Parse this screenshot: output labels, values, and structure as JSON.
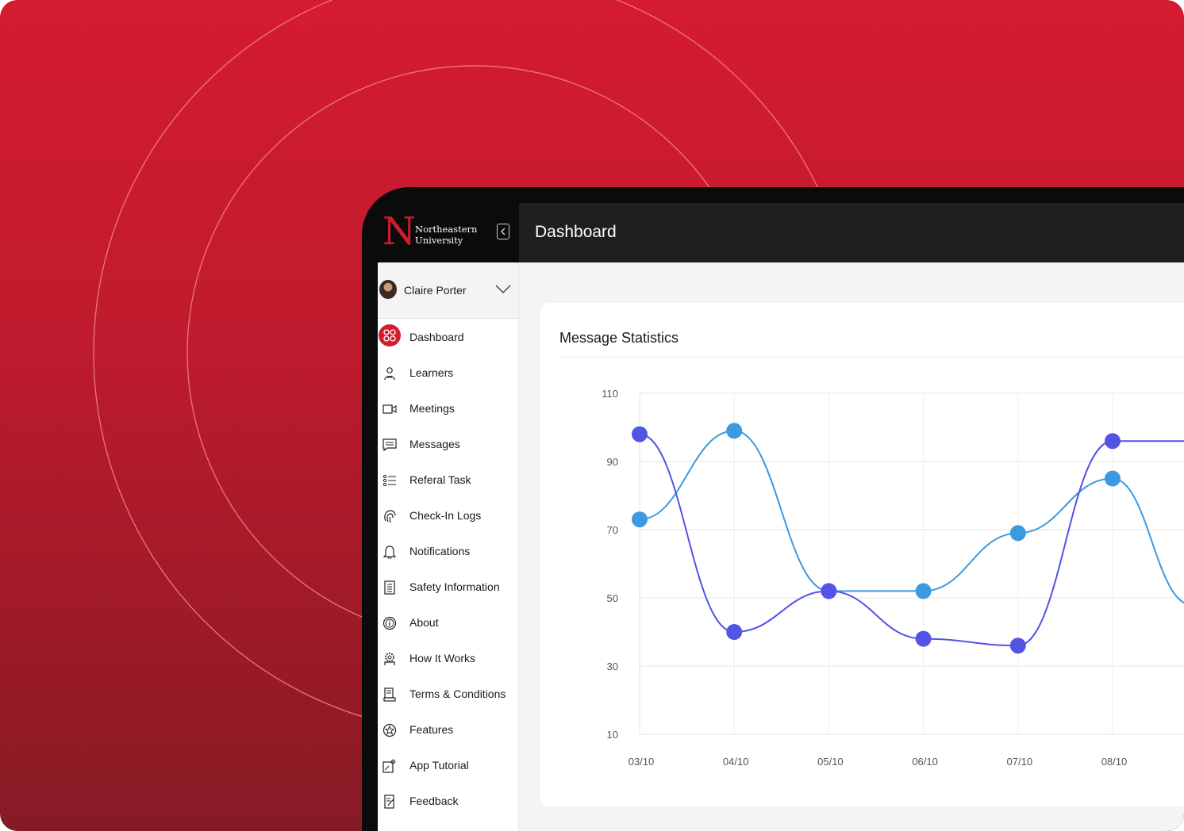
{
  "brand": {
    "logo_letter": "N",
    "line1": "Northeastern",
    "line2": "University"
  },
  "header": {
    "title": "Dashboard"
  },
  "user": {
    "name": "Claire Porter"
  },
  "nav": [
    {
      "label": "Dashboard",
      "icon": "dashboard-icon",
      "active": true
    },
    {
      "label": "Learners",
      "icon": "learner-icon"
    },
    {
      "label": "Meetings",
      "icon": "video-icon"
    },
    {
      "label": "Messages",
      "icon": "message-icon"
    },
    {
      "label": "Referal Task",
      "icon": "list-icon"
    },
    {
      "label": "Check-In Logs",
      "icon": "fingerprint-icon"
    },
    {
      "label": "Notifications",
      "icon": "bell-icon"
    },
    {
      "label": "Safety Information",
      "icon": "document-icon"
    },
    {
      "label": "About",
      "icon": "info-icon"
    },
    {
      "label": "How It Works",
      "icon": "gears-icon"
    },
    {
      "label": "Terms & Conditions",
      "icon": "terms-icon"
    },
    {
      "label": "Features",
      "icon": "star-icon"
    },
    {
      "label": "App Tutorial",
      "icon": "tutorial-icon"
    },
    {
      "label": "Feedback",
      "icon": "feedback-icon"
    }
  ],
  "colors": {
    "brand_red": "#d51b2f",
    "series_a": "#3b9ae1",
    "series_b": "#5353e6"
  },
  "chart_data": {
    "type": "line",
    "title": "Message Statistics",
    "categories": [
      "03/10",
      "04/10",
      "05/10",
      "06/10",
      "07/10",
      "08/10"
    ],
    "yticks": [
      110,
      90,
      70,
      50,
      30,
      10
    ],
    "ylim": [
      10,
      110
    ],
    "grid": true,
    "series": [
      {
        "color": "#3b9ae1",
        "values": [
          73,
          99,
          52,
          52,
          69,
          85
        ],
        "trailing": 48
      },
      {
        "color": "#5353e6",
        "values": [
          98,
          40,
          52,
          38,
          36,
          96
        ],
        "trailing": 96
      }
    ]
  }
}
